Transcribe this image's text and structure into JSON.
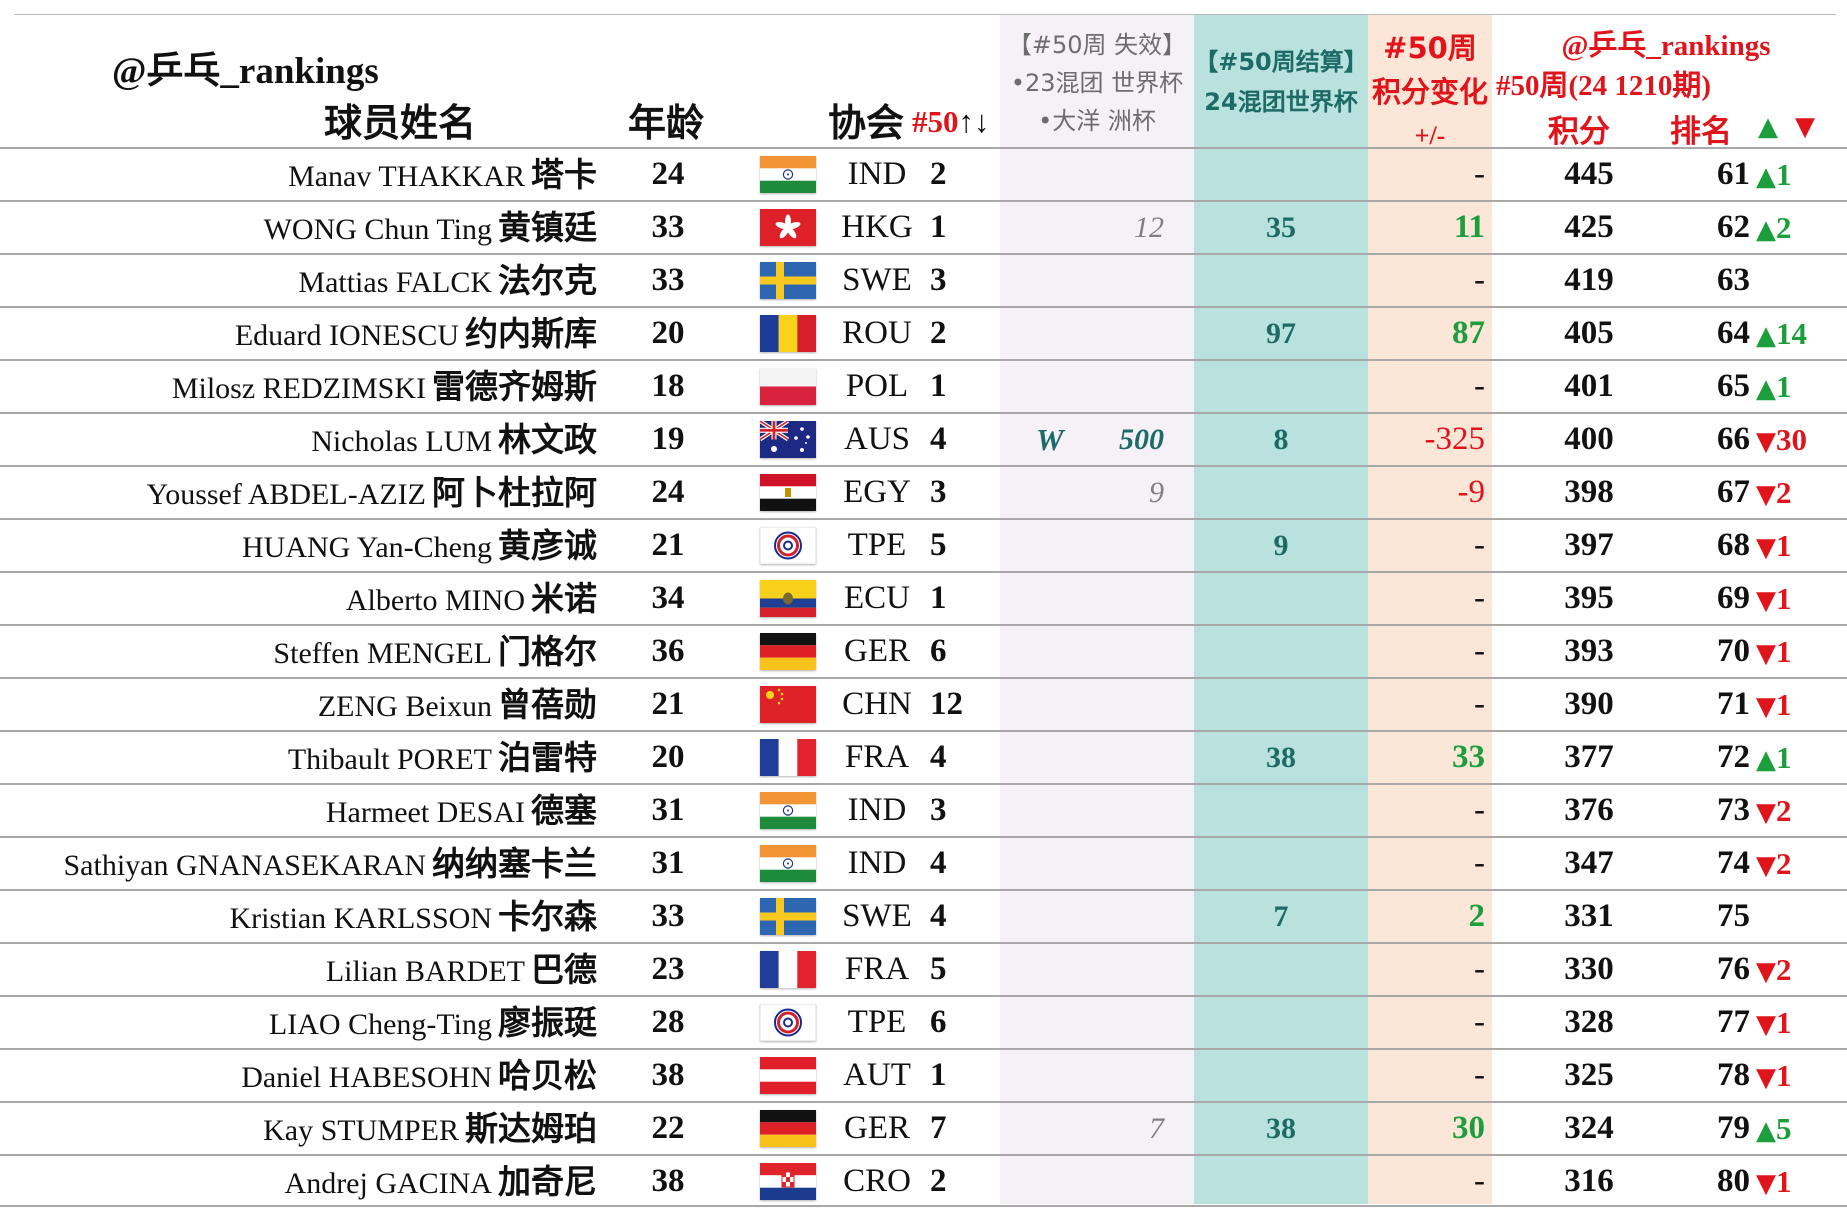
{
  "header": {
    "handle": "@乒乓_rankings",
    "col_name": "球员姓名",
    "col_age": "年龄",
    "col_assoc": "协会",
    "sort_label": "#50",
    "sort_arrows": "↑↓",
    "lost_title": "【#50周 失效】",
    "lost_line2": "•23混团 世界杯",
    "lost_line3": "•大洋 洲杯",
    "calc_title": "【#50周结算】",
    "calc_line2": "24混团世界杯",
    "delta_line1": "#50周",
    "delta_line2": "积分变化",
    "delta_line3": "+/-",
    "rank_handle": "@乒乓_rankings",
    "rank_period": "#50周(24 1210期)",
    "col_points": "积分",
    "col_rank": "排名",
    "up_symbol": "▲",
    "down_symbol": "▼"
  },
  "rows": [
    {
      "name": "Manav THAKKAR",
      "cn": "塔卡",
      "age": "24",
      "flag": "IND",
      "code": "IND",
      "count": "2",
      "lost_w": "",
      "lost": "",
      "calc": "",
      "delta": "-",
      "delta_type": "none",
      "points": "445",
      "rank": "61",
      "move": "1",
      "move_dir": "up"
    },
    {
      "name": "WONG Chun Ting",
      "cn": "黄镇廷",
      "age": "33",
      "flag": "HKG",
      "code": "HKG",
      "count": "1",
      "lost_w": "",
      "lost": "12",
      "calc": "35",
      "delta": "11",
      "delta_type": "pos",
      "points": "425",
      "rank": "62",
      "move": "2",
      "move_dir": "up"
    },
    {
      "name": "Mattias FALCK",
      "cn": "法尔克",
      "age": "33",
      "flag": "SWE",
      "code": "SWE",
      "count": "3",
      "lost_w": "",
      "lost": "",
      "calc": "",
      "delta": "-",
      "delta_type": "none",
      "points": "419",
      "rank": "63",
      "move": "",
      "move_dir": ""
    },
    {
      "name": "Eduard IONESCU",
      "cn": "约内斯库",
      "age": "20",
      "flag": "ROU",
      "code": "ROU",
      "count": "2",
      "lost_w": "",
      "lost": "",
      "calc": "97",
      "delta": "87",
      "delta_type": "pos",
      "points": "405",
      "rank": "64",
      "move": "14",
      "move_dir": "up"
    },
    {
      "name": "Milosz REDZIMSKI",
      "cn": "雷德齐姆斯",
      "age": "18",
      "flag": "POL",
      "code": "POL",
      "count": "1",
      "lost_w": "",
      "lost": "",
      "calc": "",
      "delta": "-",
      "delta_type": "none",
      "points": "401",
      "rank": "65",
      "move": "1",
      "move_dir": "up"
    },
    {
      "name": "Nicholas LUM",
      "cn": "林文政",
      "age": "19",
      "flag": "AUS",
      "code": "AUS",
      "count": "4",
      "lost_w": "W",
      "lost": "500",
      "lost_teal": true,
      "calc": "8",
      "delta": "-325",
      "delta_type": "neg",
      "points": "400",
      "rank": "66",
      "move": "30",
      "move_dir": "down"
    },
    {
      "name": "Youssef ABDEL-AZIZ",
      "cn": "阿卜杜拉阿",
      "age": "24",
      "flag": "EGY",
      "code": "EGY",
      "count": "3",
      "lost_w": "",
      "lost": "9",
      "calc": "",
      "delta": "-9",
      "delta_type": "neg",
      "points": "398",
      "rank": "67",
      "move": "2",
      "move_dir": "down"
    },
    {
      "name": "HUANG Yan-Cheng",
      "cn": "黄彦诚",
      "age": "21",
      "flag": "TPE",
      "code": "TPE",
      "count": "5",
      "lost_w": "",
      "lost": "",
      "calc": "9",
      "delta": "-",
      "delta_type": "none",
      "points": "397",
      "rank": "68",
      "move": "1",
      "move_dir": "down"
    },
    {
      "name": "Alberto MINO",
      "cn": "米诺",
      "age": "34",
      "flag": "ECU",
      "code": "ECU",
      "count": "1",
      "lost_w": "",
      "lost": "",
      "calc": "",
      "delta": "-",
      "delta_type": "none",
      "points": "395",
      "rank": "69",
      "move": "1",
      "move_dir": "down"
    },
    {
      "name": "Steffen MENGEL",
      "cn": "门格尔",
      "age": "36",
      "flag": "GER",
      "code": "GER",
      "count": "6",
      "lost_w": "",
      "lost": "",
      "calc": "",
      "delta": "-",
      "delta_type": "none",
      "points": "393",
      "rank": "70",
      "move": "1",
      "move_dir": "down"
    },
    {
      "name": "ZENG Beixun",
      "cn": "曾蓓勋",
      "age": "21",
      "flag": "CHN",
      "code": "CHN",
      "count": "12",
      "lost_w": "",
      "lost": "",
      "calc": "",
      "delta": "-",
      "delta_type": "none",
      "points": "390",
      "rank": "71",
      "move": "1",
      "move_dir": "down"
    },
    {
      "name": "Thibault PORET",
      "cn": "泊雷特",
      "age": "20",
      "flag": "FRA",
      "code": "FRA",
      "count": "4",
      "lost_w": "",
      "lost": "",
      "calc": "38",
      "delta": "33",
      "delta_type": "pos",
      "points": "377",
      "rank": "72",
      "move": "1",
      "move_dir": "up"
    },
    {
      "name": "Harmeet DESAI",
      "cn": "德塞",
      "age": "31",
      "flag": "IND",
      "code": "IND",
      "count": "3",
      "lost_w": "",
      "lost": "",
      "calc": "",
      "delta": "-",
      "delta_type": "none",
      "points": "376",
      "rank": "73",
      "move": "2",
      "move_dir": "down"
    },
    {
      "name": "Sathiyan GNANASEKARAN",
      "cn": "纳纳塞卡兰",
      "age": "31",
      "flag": "IND",
      "code": "IND",
      "count": "4",
      "lost_w": "",
      "lost": "",
      "calc": "",
      "delta": "-",
      "delta_type": "none",
      "points": "347",
      "rank": "74",
      "move": "2",
      "move_dir": "down"
    },
    {
      "name": "Kristian KARLSSON",
      "cn": "卡尔森",
      "age": "33",
      "flag": "SWE",
      "code": "SWE",
      "count": "4",
      "lost_w": "",
      "lost": "",
      "calc": "7",
      "delta": "2",
      "delta_type": "pos",
      "points": "331",
      "rank": "75",
      "move": "",
      "move_dir": ""
    },
    {
      "name": "Lilian BARDET",
      "cn": "巴德",
      "age": "23",
      "flag": "FRA",
      "code": "FRA",
      "count": "5",
      "lost_w": "",
      "lost": "",
      "calc": "",
      "delta": "-",
      "delta_type": "none",
      "points": "330",
      "rank": "76",
      "move": "2",
      "move_dir": "down"
    },
    {
      "name": "LIAO Cheng-Ting",
      "cn": "廖振珽",
      "age": "28",
      "flag": "TPE",
      "code": "TPE",
      "count": "6",
      "lost_w": "",
      "lost": "",
      "calc": "",
      "delta": "-",
      "delta_type": "none",
      "points": "328",
      "rank": "77",
      "move": "1",
      "move_dir": "down"
    },
    {
      "name": "Daniel HABESOHN",
      "cn": "哈贝松",
      "age": "38",
      "flag": "AUT",
      "code": "AUT",
      "count": "1",
      "lost_w": "",
      "lost": "",
      "calc": "",
      "delta": "-",
      "delta_type": "none",
      "points": "325",
      "rank": "78",
      "move": "1",
      "move_dir": "down"
    },
    {
      "name": "Kay STUMPER",
      "cn": "斯达姆珀",
      "age": "22",
      "flag": "GER",
      "code": "GER",
      "count": "7",
      "lost_w": "",
      "lost": "7",
      "calc": "38",
      "delta": "30",
      "delta_type": "pos",
      "points": "324",
      "rank": "79",
      "move": "5",
      "move_dir": "up"
    },
    {
      "name": "Andrej GACINA",
      "cn": "加奇尼",
      "age": "38",
      "flag": "CRO",
      "code": "CRO",
      "count": "2",
      "lost_w": "",
      "lost": "",
      "calc": "",
      "delta": "-",
      "delta_type": "none",
      "points": "316",
      "rank": "80",
      "move": "1",
      "move_dir": "down"
    }
  ]
}
